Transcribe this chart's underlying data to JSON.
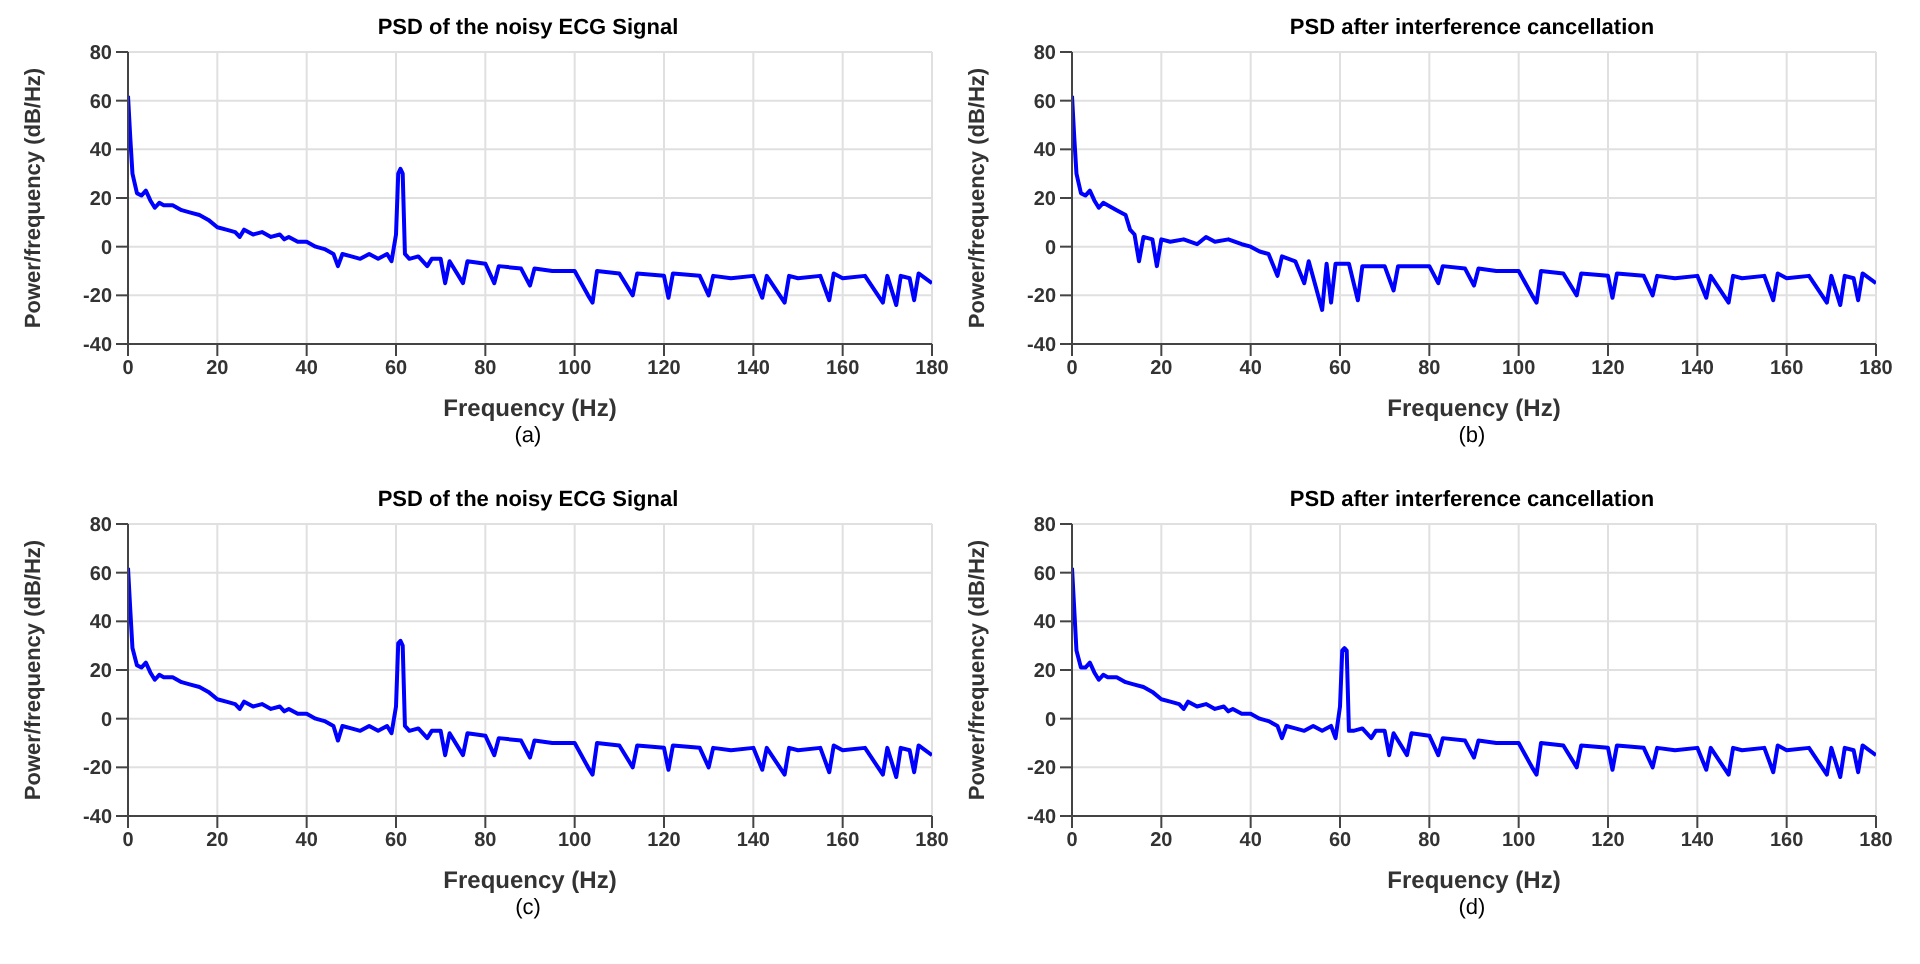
{
  "chart_data": [
    {
      "type": "line",
      "title": "PSD of the noisy ECG Signal",
      "xlabel": "Frequency (Hz)",
      "ylabel": "Power/frequency (dB/Hz)",
      "annotations": [
        "(a)"
      ],
      "xlim": [
        0,
        180
      ],
      "xticks": [
        0,
        20,
        40,
        60,
        80,
        100,
        120,
        140,
        160,
        180
      ],
      "ylim": [
        -40,
        80
      ],
      "yticks": [
        -40,
        -20,
        0,
        20,
        40,
        60,
        80
      ],
      "grid": true,
      "x": [
        0,
        0.5,
        1,
        2,
        3,
        4,
        5,
        6,
        7,
        8,
        10,
        12,
        14,
        16,
        18,
        20,
        22,
        24,
        25,
        26,
        28,
        30,
        32,
        34,
        35,
        36,
        38,
        40,
        42,
        44,
        46,
        47,
        48,
        50,
        52,
        54,
        56,
        58,
        59,
        60,
        60.5,
        61,
        61.5,
        62,
        63,
        65,
        67,
        68,
        70,
        71,
        72,
        75,
        76,
        80,
        82,
        83,
        88,
        90,
        91,
        95,
        100,
        103,
        104,
        105,
        110,
        113,
        114,
        120,
        121,
        122,
        128,
        130,
        131,
        135,
        140,
        142,
        143,
        147,
        148,
        150,
        155,
        157,
        158,
        160,
        165,
        169,
        170,
        172,
        173,
        175,
        176,
        177,
        180
      ],
      "series": [
        {
          "color": "#0000ff",
          "values": [
            62,
            45,
            30,
            22,
            21,
            23,
            19,
            16,
            18,
            17,
            17,
            15,
            14,
            13,
            11,
            8,
            7,
            6,
            4,
            7,
            5,
            6,
            4,
            5,
            3,
            4,
            2,
            2,
            0,
            -1,
            -3,
            -8,
            -3,
            -4,
            -5,
            -3,
            -5,
            -3,
            -6,
            5,
            30,
            32,
            30,
            -3,
            -5,
            -4,
            -8,
            -5,
            -5,
            -15,
            -6,
            -15,
            -6,
            -7,
            -15,
            -8,
            -9,
            -16,
            -9,
            -10,
            -10,
            -20,
            -23,
            -10,
            -11,
            -20,
            -11,
            -12,
            -21,
            -11,
            -12,
            -20,
            -12,
            -13,
            -12,
            -21,
            -12,
            -23,
            -12,
            -13,
            -12,
            -22,
            -11,
            -13,
            -12,
            -23,
            -12,
            -24,
            -12,
            -13,
            -22,
            -11,
            -15
          ]
        }
      ]
    },
    {
      "type": "line",
      "title": "PSD after interference cancellation",
      "xlabel": "Frequency (Hz)",
      "ylabel": "Power/frequency (dB/Hz)",
      "annotations": [
        "(b)"
      ],
      "xlim": [
        0,
        180
      ],
      "xticks": [
        0,
        20,
        40,
        60,
        80,
        100,
        120,
        140,
        160,
        180
      ],
      "ylim": [
        -40,
        80
      ],
      "yticks": [
        -40,
        -20,
        0,
        20,
        40,
        60,
        80
      ],
      "grid": true,
      "x": [
        0,
        0.5,
        1,
        2,
        3,
        4,
        5,
        6,
        7,
        8,
        10,
        12,
        13,
        14,
        15,
        16,
        18,
        19,
        20,
        22,
        25,
        28,
        30,
        32,
        35,
        38,
        40,
        42,
        44,
        46,
        47,
        50,
        52,
        53,
        56,
        57,
        58,
        59,
        62,
        64,
        65,
        70,
        72,
        73,
        80,
        82,
        83,
        88,
        90,
        91,
        95,
        100,
        103,
        104,
        105,
        110,
        113,
        114,
        120,
        121,
        122,
        128,
        130,
        131,
        135,
        140,
        142,
        143,
        147,
        148,
        150,
        155,
        157,
        158,
        160,
        165,
        169,
        170,
        172,
        173,
        175,
        176,
        177,
        180
      ],
      "series": [
        {
          "color": "#0000ff",
          "values": [
            62,
            45,
            30,
            22,
            21,
            23,
            19,
            16,
            18,
            17,
            15,
            13,
            7,
            5,
            -6,
            4,
            3,
            -8,
            3,
            2,
            3,
            1,
            4,
            2,
            3,
            1,
            0,
            -2,
            -3,
            -12,
            -4,
            -6,
            -15,
            -6,
            -26,
            -7,
            -23,
            -7,
            -7,
            -22,
            -8,
            -8,
            -18,
            -8,
            -8,
            -15,
            -8,
            -9,
            -16,
            -9,
            -10,
            -10,
            -20,
            -23,
            -10,
            -11,
            -20,
            -11,
            -12,
            -21,
            -11,
            -12,
            -20,
            -12,
            -13,
            -12,
            -21,
            -12,
            -23,
            -12,
            -13,
            -12,
            -22,
            -11,
            -13,
            -12,
            -23,
            -12,
            -24,
            -12,
            -13,
            -22,
            -11,
            -15
          ]
        }
      ]
    },
    {
      "type": "line",
      "title": "PSD of the noisy ECG Signal",
      "xlabel": "Frequency (Hz)",
      "ylabel": "Power/frequency (dB/Hz)",
      "annotations": [
        "(c)"
      ],
      "xlim": [
        0,
        180
      ],
      "xticks": [
        0,
        20,
        40,
        60,
        80,
        100,
        120,
        140,
        160,
        180
      ],
      "ylim": [
        -40,
        80
      ],
      "yticks": [
        -40,
        -20,
        0,
        20,
        40,
        60,
        80
      ],
      "grid": true,
      "x": [
        0,
        0.5,
        1,
        2,
        3,
        4,
        5,
        6,
        7,
        8,
        10,
        12,
        14,
        16,
        18,
        20,
        22,
        24,
        25,
        26,
        28,
        30,
        32,
        34,
        35,
        36,
        38,
        40,
        42,
        44,
        46,
        47,
        48,
        50,
        52,
        54,
        56,
        58,
        59,
        60,
        60.5,
        61,
        61.5,
        62,
        63,
        65,
        67,
        68,
        70,
        71,
        72,
        75,
        76,
        80,
        82,
        83,
        88,
        90,
        91,
        95,
        100,
        103,
        104,
        105,
        110,
        113,
        114,
        120,
        121,
        122,
        128,
        130,
        131,
        135,
        140,
        142,
        143,
        147,
        148,
        150,
        155,
        157,
        158,
        160,
        165,
        169,
        170,
        172,
        173,
        175,
        176,
        177,
        180
      ],
      "series": [
        {
          "color": "#0000ff",
          "values": [
            62,
            45,
            29,
            22,
            21,
            23,
            19,
            16,
            18,
            17,
            17,
            15,
            14,
            13,
            11,
            8,
            7,
            6,
            4,
            7,
            5,
            6,
            4,
            5,
            3,
            4,
            2,
            2,
            0,
            -1,
            -3,
            -9,
            -3,
            -4,
            -5,
            -3,
            -5,
            -3,
            -6,
            5,
            31,
            32,
            30,
            -3,
            -5,
            -4,
            -8,
            -5,
            -5,
            -15,
            -6,
            -15,
            -6,
            -7,
            -15,
            -8,
            -9,
            -16,
            -9,
            -10,
            -10,
            -20,
            -23,
            -10,
            -11,
            -20,
            -11,
            -12,
            -21,
            -11,
            -12,
            -20,
            -12,
            -13,
            -12,
            -21,
            -12,
            -23,
            -12,
            -13,
            -12,
            -22,
            -11,
            -13,
            -12,
            -23,
            -12,
            -24,
            -12,
            -13,
            -22,
            -11,
            -15
          ]
        }
      ]
    },
    {
      "type": "line",
      "title": "PSD after interference cancellation",
      "xlabel": "Frequency (Hz)",
      "ylabel": "Power/frequency (dB/Hz)",
      "annotations": [
        "(d)"
      ],
      "xlim": [
        0,
        180
      ],
      "xticks": [
        0,
        20,
        40,
        60,
        80,
        100,
        120,
        140,
        160,
        180
      ],
      "ylim": [
        -40,
        80
      ],
      "yticks": [
        -40,
        -20,
        0,
        20,
        40,
        60,
        80
      ],
      "grid": true,
      "x": [
        0,
        0.5,
        1,
        2,
        3,
        4,
        5,
        6,
        7,
        8,
        10,
        12,
        14,
        16,
        18,
        20,
        22,
        24,
        25,
        26,
        28,
        30,
        32,
        34,
        35,
        36,
        38,
        40,
        42,
        44,
        46,
        47,
        48,
        50,
        52,
        54,
        56,
        58,
        59,
        60,
        60.5,
        61,
        61.5,
        62,
        63,
        65,
        67,
        68,
        70,
        71,
        72,
        75,
        76,
        80,
        82,
        83,
        88,
        90,
        91,
        95,
        100,
        103,
        104,
        105,
        110,
        113,
        114,
        120,
        121,
        122,
        128,
        130,
        131,
        135,
        140,
        142,
        143,
        147,
        148,
        150,
        155,
        157,
        158,
        160,
        165,
        169,
        170,
        172,
        173,
        175,
        176,
        177,
        180
      ],
      "series": [
        {
          "color": "#0000ff",
          "values": [
            62,
            45,
            28,
            21,
            21,
            23,
            19,
            16,
            18,
            17,
            17,
            15,
            14,
            13,
            11,
            8,
            7,
            6,
            4,
            7,
            5,
            6,
            4,
            5,
            3,
            4,
            2,
            2,
            0,
            -1,
            -3,
            -8,
            -3,
            -4,
            -5,
            -3,
            -5,
            -3,
            -8,
            5,
            28,
            29,
            28,
            -5,
            -5,
            -4,
            -8,
            -5,
            -5,
            -15,
            -6,
            -15,
            -6,
            -7,
            -15,
            -8,
            -9,
            -16,
            -9,
            -10,
            -10,
            -20,
            -23,
            -10,
            -11,
            -20,
            -11,
            -12,
            -21,
            -11,
            -12,
            -20,
            -12,
            -13,
            -12,
            -21,
            -12,
            -23,
            -12,
            -13,
            -12,
            -22,
            -11,
            -13,
            -12,
            -23,
            -12,
            -24,
            -12,
            -13,
            -22,
            -11,
            -15
          ]
        }
      ]
    }
  ]
}
